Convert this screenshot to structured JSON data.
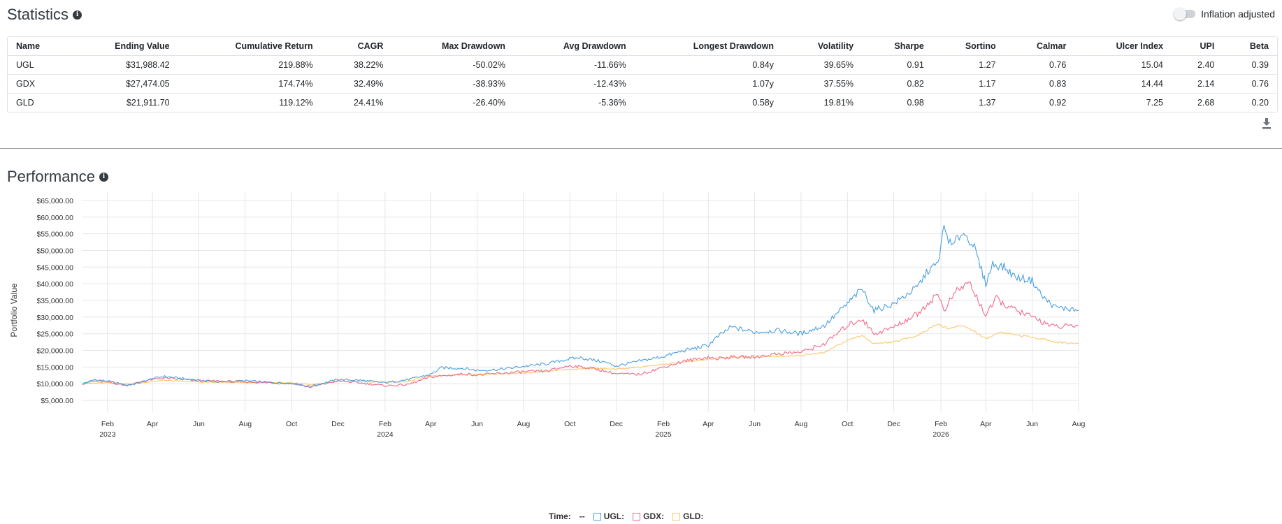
{
  "statistics": {
    "title": "Statistics",
    "info_icon": "i",
    "inflation_label": "Inflation adjusted",
    "columns": [
      "Name",
      "Ending Value",
      "Cumulative Return",
      "CAGR",
      "Max Drawdown",
      "Avg Drawdown",
      "Longest Drawdown",
      "Volatility",
      "Sharpe",
      "Sortino",
      "Calmar",
      "Ulcer Index",
      "UPI",
      "Beta"
    ],
    "rows": [
      [
        "UGL",
        "$31,988.42",
        "219.88%",
        "38.22%",
        "-50.02%",
        "-11.66%",
        "0.84y",
        "39.65%",
        "0.91",
        "1.27",
        "0.76",
        "15.04",
        "2.40",
        "0.39"
      ],
      [
        "GDX",
        "$27,474.05",
        "174.74%",
        "32.49%",
        "-38.93%",
        "-12.43%",
        "1.07y",
        "37.55%",
        "0.82",
        "1.17",
        "0.83",
        "14.44",
        "2.14",
        "0.76"
      ],
      [
        "GLD",
        "$21,911.70",
        "119.12%",
        "24.41%",
        "-26.40%",
        "-5.36%",
        "0.58y",
        "19.81%",
        "0.98",
        "1.37",
        "0.92",
        "7.25",
        "2.68",
        "0.20"
      ]
    ]
  },
  "performance": {
    "title": "Performance",
    "info_icon": "i"
  },
  "legend": {
    "time_label": "Time:",
    "time_value": "--",
    "items": [
      {
        "label": "UGL:",
        "color": "#4a9fe0"
      },
      {
        "label": "GDX:",
        "color": "#f06b8b"
      },
      {
        "label": "GLD:",
        "color": "#fcc76a"
      }
    ]
  },
  "chart_data": {
    "type": "line",
    "ylabel": "Portfolio Value",
    "ylim": [
      2500,
      67500
    ],
    "y_ticks": [
      5000,
      10000,
      15000,
      20000,
      25000,
      30000,
      35000,
      40000,
      45000,
      50000,
      55000,
      60000,
      65000
    ],
    "y_tick_labels": [
      "$5,000.00",
      "$10,000.00",
      "$15,000.00",
      "$20,000.00",
      "$25,000.00",
      "$30,000.00",
      "$35,000.00",
      "$40,000.00",
      "$45,000.00",
      "$50,000.00",
      "$55,000.00",
      "$60,000.00",
      "$65,000.00"
    ],
    "xlim": [
      "2022-12-30",
      "2026-08-01"
    ],
    "x_ticks": [
      "2023-02-01",
      "2023-04-01",
      "2023-06-01",
      "2023-08-01",
      "2023-10-01",
      "2023-12-01",
      "2024-02-01",
      "2024-04-01",
      "2024-06-01",
      "2024-08-01",
      "2024-10-01",
      "2024-12-01",
      "2025-02-01",
      "2025-04-01",
      "2025-06-01",
      "2025-08-01",
      "2025-10-01",
      "2025-12-01",
      "2026-02-01",
      "2026-04-01",
      "2026-06-01",
      "2026-08-01"
    ],
    "x_tick_labels": [
      "Feb",
      "Apr",
      "Jun",
      "Aug",
      "Oct",
      "Dec",
      "Feb",
      "Apr",
      "Jun",
      "Aug",
      "Oct",
      "Dec",
      "Feb",
      "Apr",
      "Jun",
      "Aug",
      "Oct",
      "Dec",
      "Feb",
      "Apr",
      "Jun",
      "Aug"
    ],
    "x_year_labels": [
      {
        "date": "2023-02-01",
        "label": "2023"
      },
      {
        "date": "2024-02-01",
        "label": "2024"
      },
      {
        "date": "2025-02-01",
        "label": "2025"
      },
      {
        "date": "2026-02-01",
        "label": "2026"
      }
    ],
    "grid": true,
    "legend_position": "bottom-center",
    "series": [
      {
        "name": "UGL",
        "color": "#4a9fe0",
        "x": [
          "2022-12-30",
          "2023-01-15",
          "2023-02-01",
          "2023-02-25",
          "2023-03-10",
          "2023-04-01",
          "2023-04-15",
          "2023-05-01",
          "2023-06-01",
          "2023-07-01",
          "2023-08-01",
          "2023-09-01",
          "2023-10-05",
          "2023-10-25",
          "2023-12-01",
          "2024-01-01",
          "2024-02-01",
          "2024-03-01",
          "2024-04-01",
          "2024-04-15",
          "2024-05-15",
          "2024-06-01",
          "2024-07-01",
          "2024-08-01",
          "2024-09-01",
          "2024-10-01",
          "2024-10-15",
          "2024-11-15",
          "2024-12-01",
          "2025-01-01",
          "2025-02-01",
          "2025-03-01",
          "2025-04-01",
          "2025-04-10",
          "2025-05-01",
          "2025-06-01",
          "2025-07-01",
          "2025-08-01",
          "2025-09-01",
          "2025-10-01",
          "2025-10-20",
          "2025-11-05",
          "2025-12-01",
          "2026-01-01",
          "2026-01-15",
          "2026-01-28",
          "2026-02-05",
          "2026-02-15",
          "2026-03-01",
          "2026-03-15",
          "2026-04-01",
          "2026-04-10",
          "2026-04-25",
          "2026-05-10",
          "2026-06-01",
          "2026-06-15",
          "2026-07-01",
          "2026-08-01"
        ],
        "values": [
          10000,
          11200,
          10800,
          9600,
          10000,
          11500,
          12200,
          11800,
          11000,
          10500,
          10900,
          10400,
          10100,
          9200,
          11300,
          11000,
          10300,
          11200,
          12800,
          14800,
          14600,
          14000,
          14300,
          15200,
          16000,
          17500,
          17800,
          16500,
          15300,
          16800,
          18200,
          20000,
          21500,
          23500,
          27000,
          25500,
          26000,
          25000,
          27500,
          34000,
          38500,
          32000,
          34000,
          39000,
          44000,
          46000,
          57000,
          51000,
          55500,
          52000,
          40000,
          46000,
          45000,
          42000,
          41000,
          36000,
          33000,
          32000
        ]
      },
      {
        "name": "GDX",
        "color": "#f06b8b",
        "x": [
          "2022-12-30",
          "2023-01-15",
          "2023-02-01",
          "2023-02-25",
          "2023-04-01",
          "2023-04-15",
          "2023-06-01",
          "2023-08-01",
          "2023-10-05",
          "2023-10-25",
          "2023-12-01",
          "2024-01-01",
          "2024-02-01",
          "2024-03-01",
          "2024-04-01",
          "2024-05-15",
          "2024-06-01",
          "2024-08-01",
          "2024-09-01",
          "2024-10-01",
          "2024-11-01",
          "2024-12-01",
          "2025-01-01",
          "2025-02-01",
          "2025-03-01",
          "2025-04-01",
          "2025-04-10",
          "2025-05-01",
          "2025-06-01",
          "2025-07-01",
          "2025-08-01",
          "2025-09-01",
          "2025-10-01",
          "2025-10-20",
          "2025-11-05",
          "2025-12-01",
          "2026-01-01",
          "2026-01-28",
          "2026-02-05",
          "2026-02-20",
          "2026-03-10",
          "2026-04-01",
          "2026-04-15",
          "2026-05-01",
          "2026-06-01",
          "2026-07-01",
          "2026-08-01"
        ],
        "values": [
          10000,
          10800,
          10500,
          9500,
          11300,
          11700,
          10900,
          10600,
          10000,
          8900,
          10900,
          10200,
          9400,
          9700,
          12000,
          13000,
          12600,
          13600,
          13800,
          15400,
          14600,
          13000,
          12800,
          15000,
          16800,
          18000,
          17500,
          18000,
          18000,
          19000,
          19500,
          22000,
          27500,
          29500,
          25000,
          27000,
          31000,
          37000,
          32000,
          37500,
          40500,
          30500,
          35500,
          33000,
          30000,
          27000,
          27500
        ]
      },
      {
        "name": "GLD",
        "color": "#fcc76a",
        "x": [
          "2022-12-30",
          "2023-02-01",
          "2023-03-01",
          "2023-04-15",
          "2023-06-01",
          "2023-08-01",
          "2023-10-05",
          "2023-10-25",
          "2023-12-01",
          "2024-02-01",
          "2024-03-01",
          "2024-04-01",
          "2024-06-01",
          "2024-08-01",
          "2024-10-01",
          "2024-11-01",
          "2024-12-01",
          "2025-01-01",
          "2025-02-01",
          "2025-03-01",
          "2025-04-01",
          "2025-05-01",
          "2025-06-01",
          "2025-07-01",
          "2025-08-01",
          "2025-09-01",
          "2025-10-01",
          "2025-10-20",
          "2025-11-05",
          "2025-12-01",
          "2026-01-01",
          "2026-01-28",
          "2026-02-10",
          "2026-03-01",
          "2026-03-15",
          "2026-04-01",
          "2026-04-20",
          "2026-05-15",
          "2026-06-15",
          "2026-07-01",
          "2026-08-01"
        ],
        "values": [
          10000,
          10400,
          9900,
          11000,
          10500,
          10400,
          10200,
          9700,
          10700,
          10500,
          10600,
          12400,
          12800,
          13200,
          14300,
          14600,
          14400,
          15000,
          15800,
          16500,
          17300,
          18000,
          18000,
          18200,
          18500,
          19500,
          23000,
          24500,
          22000,
          22500,
          24500,
          28000,
          26500,
          27500,
          26000,
          23500,
          25500,
          24500,
          23500,
          22500,
          22000
        ]
      }
    ]
  }
}
